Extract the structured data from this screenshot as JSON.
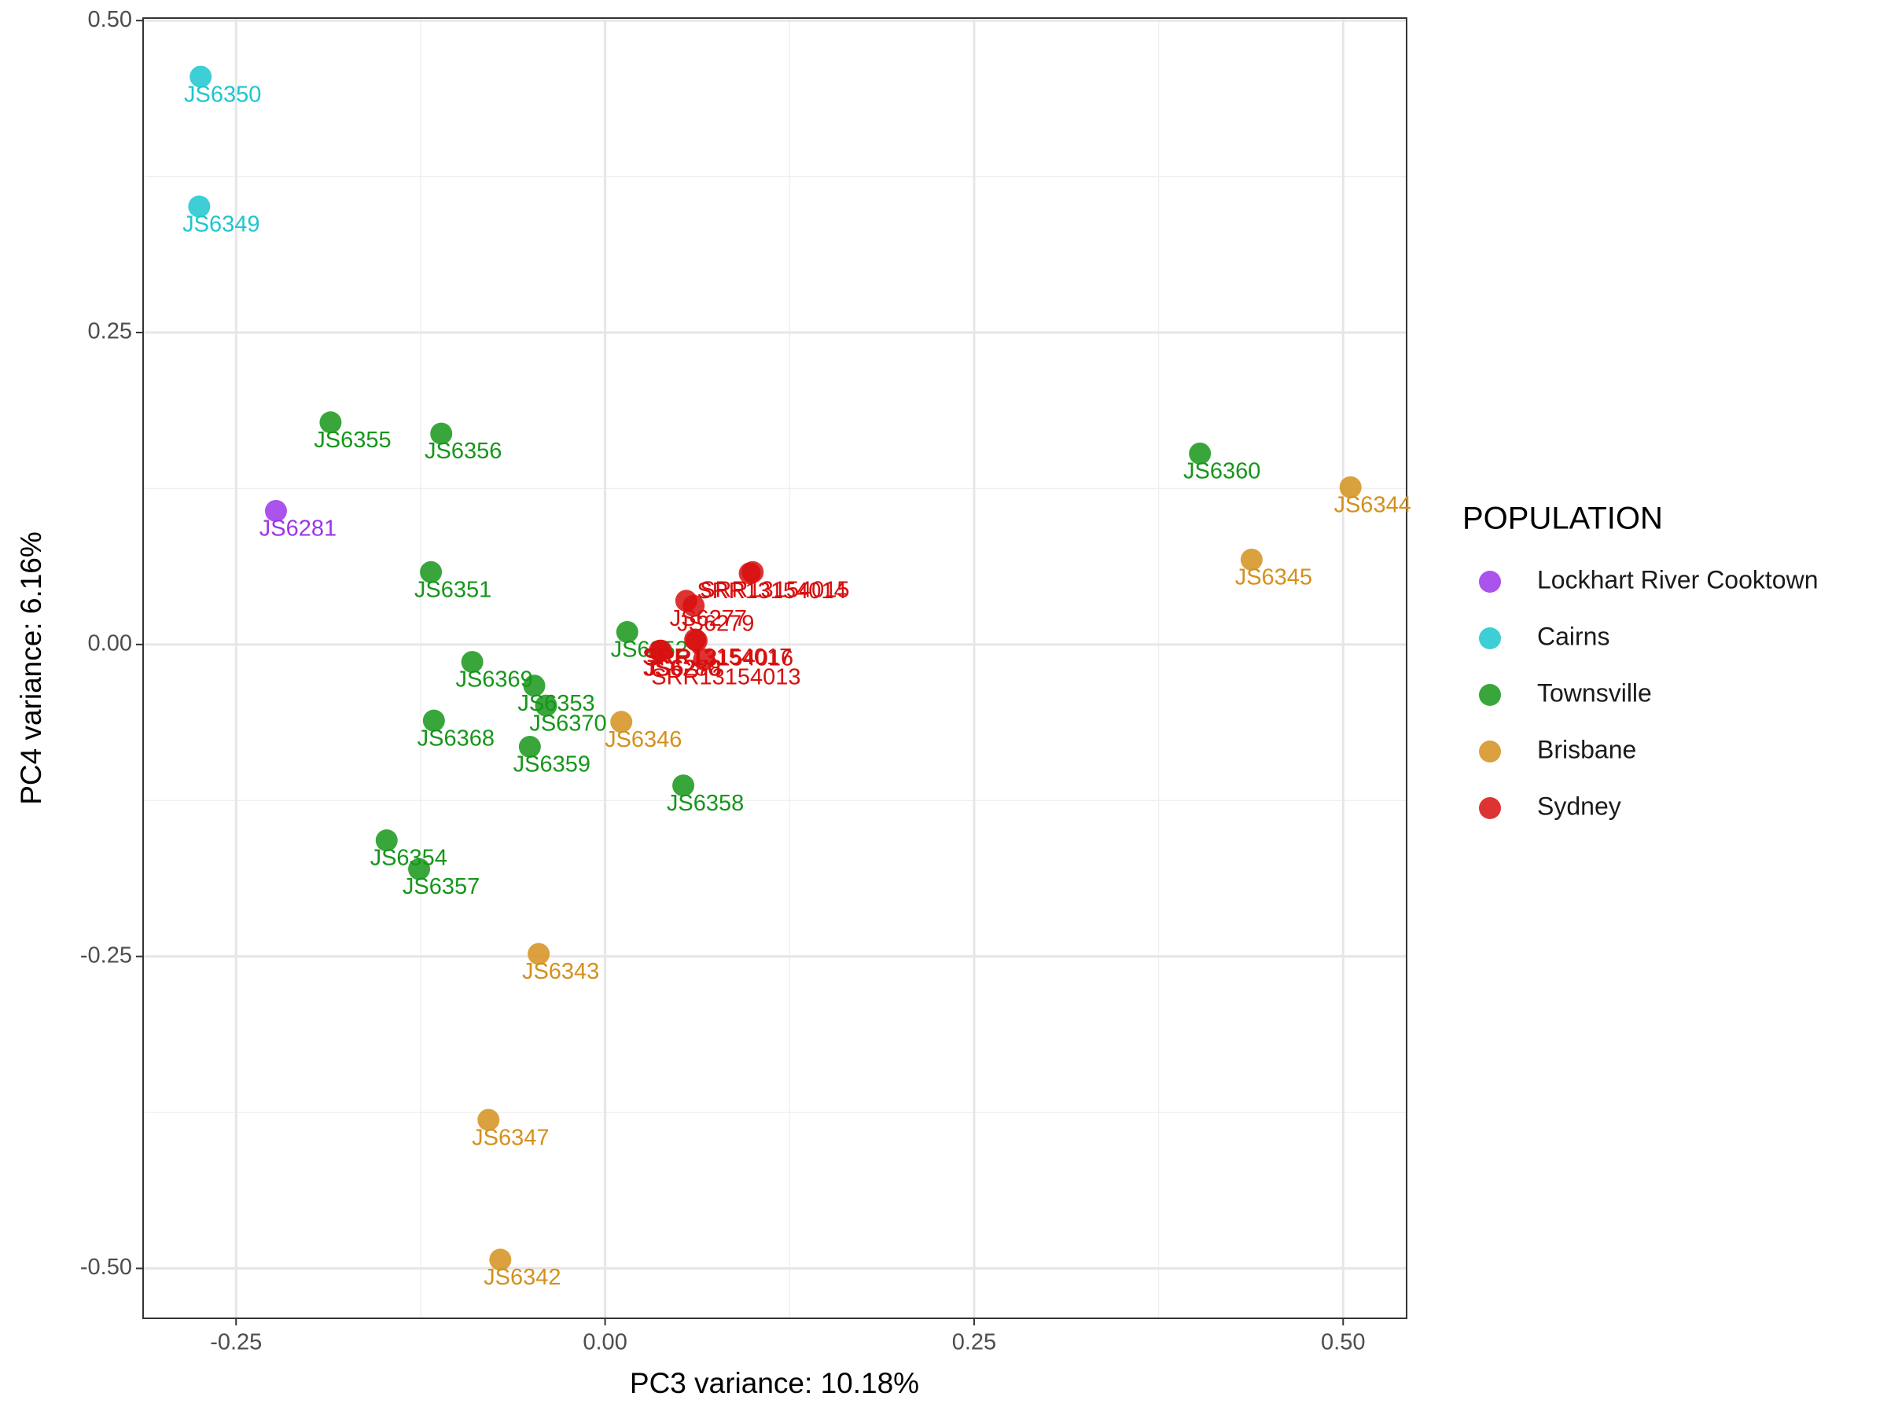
{
  "chart_data": {
    "type": "scatter",
    "x_label": "PC3 variance: 10.18%",
    "y_label": "PC4 variance: 6.16%",
    "legend_title": "POPULATION",
    "legend_position": "right",
    "grid": true,
    "xlim": [
      -0.313,
      0.543
    ],
    "ylim": [
      -0.54,
      0.502
    ],
    "xticks": [
      {
        "value": -0.25,
        "label": "-0.25"
      },
      {
        "value": 0,
        "label": "0.00"
      },
      {
        "value": 0.25,
        "label": "0.25"
      },
      {
        "value": 0.5,
        "label": "0.50"
      }
    ],
    "yticks": [
      {
        "value": -0.5,
        "label": "-0.50"
      },
      {
        "value": -0.25,
        "label": "-0.25"
      },
      {
        "value": 0,
        "label": "0.00"
      },
      {
        "value": 0.25,
        "label": "0.25"
      },
      {
        "value": 0.5,
        "label": "0.50"
      }
    ],
    "series": [
      {
        "name": "Lockhart River Cooktown",
        "color": "#9b35ea",
        "labels": [
          "JS6281"
        ],
        "x": [
          -0.223
        ],
        "values": [
          0.107
        ]
      },
      {
        "name": "Cairns",
        "color": "#1cc6cf",
        "labels": [
          "JS6350",
          "JS6349"
        ],
        "x": [
          -0.274,
          -0.275
        ],
        "values": [
          0.455,
          0.351
        ]
      },
      {
        "name": "Townsville",
        "color": "#16961a",
        "labels": [
          "JS6355",
          "JS6356",
          "JS6351",
          "JS6360",
          "JS6352",
          "JS6369",
          "JS6370",
          "JS6353",
          "JS6368",
          "JS6359",
          "JS6358",
          "JS6354",
          "JS6357"
        ],
        "x": [
          -0.186,
          -0.111,
          -0.118,
          0.403,
          0.015,
          -0.09,
          -0.04,
          -0.048,
          -0.116,
          -0.051,
          0.053,
          -0.148,
          -0.126
        ],
        "values": [
          0.178,
          0.169,
          0.058,
          0.153,
          0.01,
          -0.014,
          -0.049,
          -0.033,
          -0.061,
          -0.082,
          -0.113,
          -0.157,
          -0.18
        ]
      },
      {
        "name": "Brisbane",
        "color": "#d4901c",
        "labels": [
          "JS6344",
          "JS6345",
          "JS6346",
          "JS6343",
          "JS6347",
          "JS6342"
        ],
        "x": [
          0.505,
          0.438,
          0.011,
          -0.045,
          -0.079,
          -0.071
        ],
        "values": [
          0.126,
          0.068,
          -0.062,
          -0.248,
          -0.381,
          -0.493
        ]
      },
      {
        "name": "Sydney",
        "color": "#d7100f",
        "labels": [
          "SRR13154015",
          "SRR13154014",
          "JS6277",
          "JS6279",
          "JS6278",
          "SRR13154013",
          "SRR13154017",
          "SRR13154016",
          "JS6280"
        ],
        "x": [
          0.1,
          0.098,
          0.055,
          0.06,
          0.038,
          0.067,
          0.061,
          0.062,
          0.037
        ],
        "values": [
          0.058,
          0.057,
          0.035,
          0.031,
          -0.005,
          -0.012,
          0.004,
          0.003,
          -0.005
        ]
      }
    ]
  }
}
